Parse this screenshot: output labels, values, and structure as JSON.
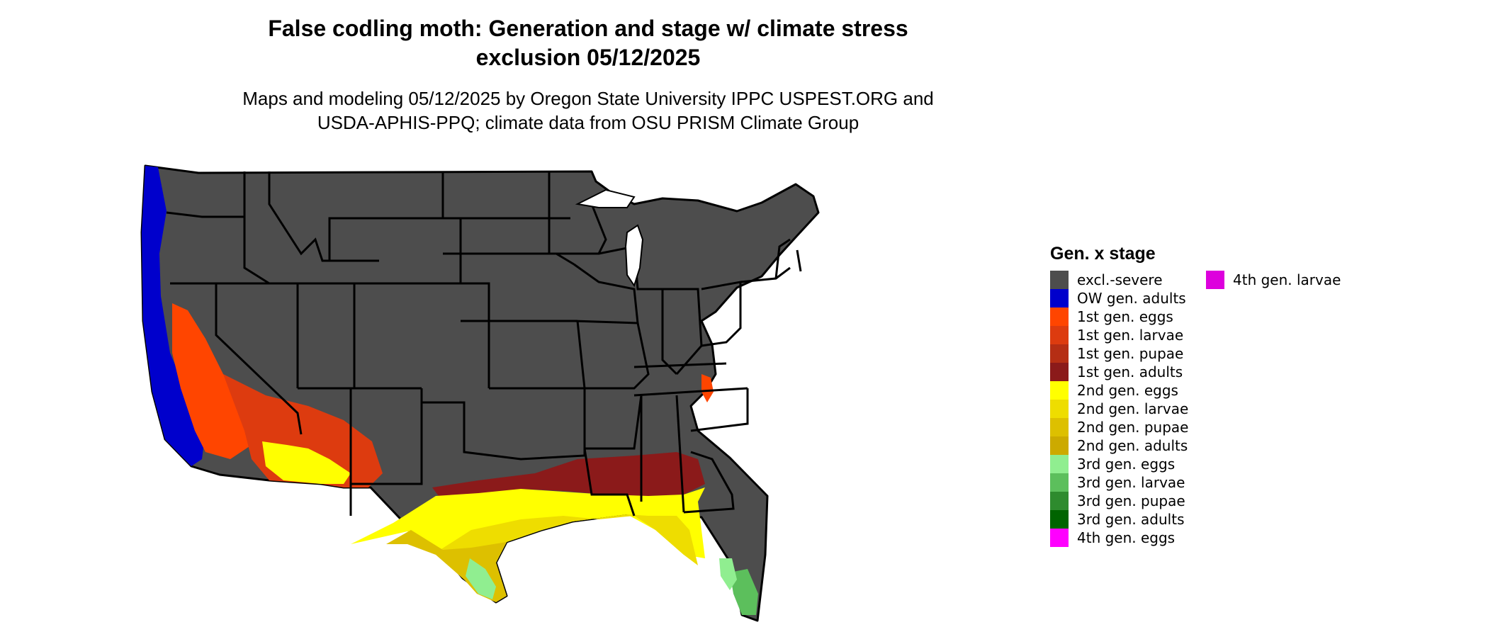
{
  "title": {
    "line1": "False codling moth: Generation and stage w/ climate stress",
    "line2": "exclusion 05/12/2025"
  },
  "subtitle": {
    "line1": "Maps and modeling 05/12/2025 by Oregon State University IPPC USPEST.ORG and",
    "line2": "USDA-APHIS-PPQ; climate data from OSU PRISM Climate Group"
  },
  "legend": {
    "title": "Gen. x stage",
    "items": [
      {
        "label": "excl.-severe",
        "color": "#4d4d4d"
      },
      {
        "label": "OW gen. adults",
        "color": "#0000cc"
      },
      {
        "label": "1st gen. eggs",
        "color": "#ff4500"
      },
      {
        "label": "1st gen. larvae",
        "color": "#dd3b0f"
      },
      {
        "label": "1st gen. pupae",
        "color": "#b52e14"
      },
      {
        "label": "1st gen. adults",
        "color": "#8b1a1a"
      },
      {
        "label": "2nd gen. eggs",
        "color": "#ffff00"
      },
      {
        "label": "2nd gen. larvae",
        "color": "#eedd00"
      },
      {
        "label": "2nd gen. pupae",
        "color": "#ddc000"
      },
      {
        "label": "2nd gen. adults",
        "color": "#ccaa00"
      },
      {
        "label": "3rd gen. eggs",
        "color": "#90ee90"
      },
      {
        "label": "3rd gen. larvae",
        "color": "#5cbf5c"
      },
      {
        "label": "3rd gen. pupae",
        "color": "#2e8b2e"
      },
      {
        "label": "3rd gen. adults",
        "color": "#006400"
      },
      {
        "label": "4th gen. eggs",
        "color": "#ff00ff"
      },
      {
        "label": "4th gen. larvae",
        "color": "#dd00dd"
      }
    ]
  },
  "map": {
    "background_color": "#4d4d4d",
    "border_color": "#000000"
  }
}
